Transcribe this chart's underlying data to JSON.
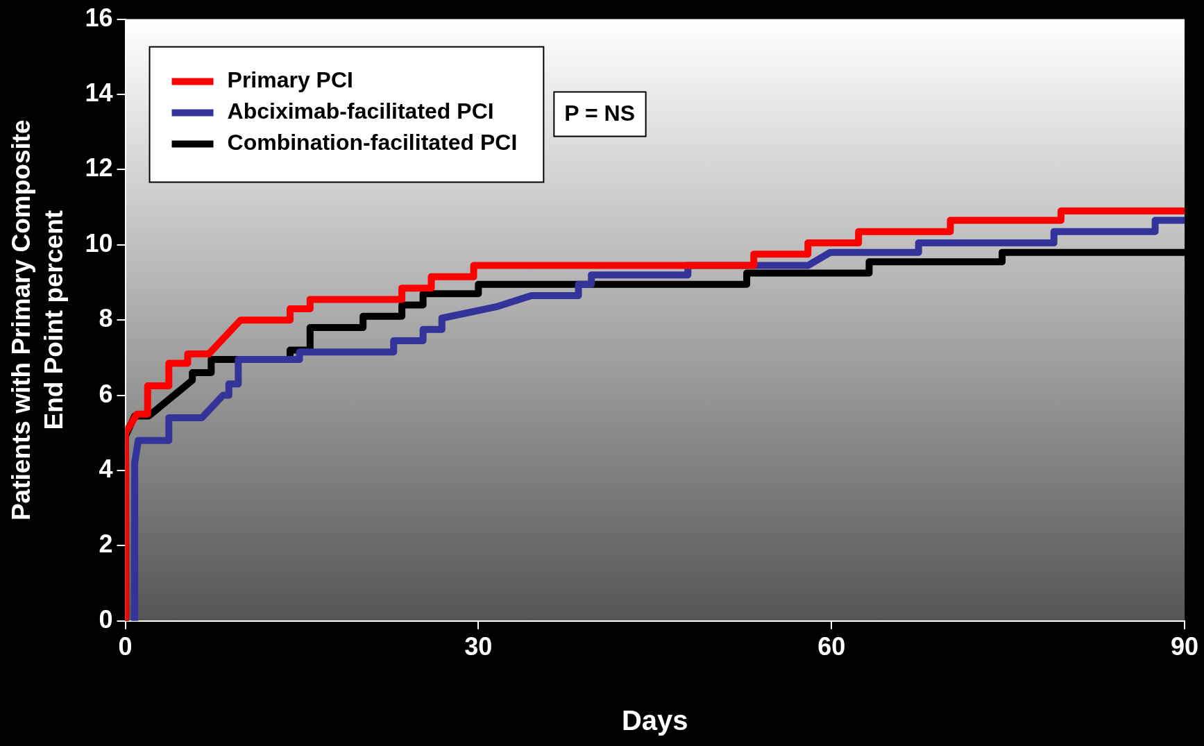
{
  "chart_data": {
    "type": "line",
    "xlabel": "Days",
    "ylabel": "Patients with Primary Composite\nEnd Point percent",
    "xlim": [
      0,
      90
    ],
    "xticks": [
      0,
      30,
      60,
      90
    ],
    "ylim": [
      0,
      16
    ],
    "yticks": [
      0,
      2,
      4,
      6,
      8,
      10,
      12,
      14,
      16
    ],
    "grid": false,
    "legend": "top left",
    "marker": "none",
    "line_style": "solid",
    "annotations": [
      "P = NS"
    ],
    "series": [
      {
        "name": "Primary PCI",
        "color": "#ff0000",
        "x": [
          0,
          0,
          1,
          1.9,
          1.9,
          3.7,
          3.7,
          5.3,
          5.3,
          7.1,
          9.8,
          14,
          14,
          15.7,
          15.7,
          23.5,
          23.5,
          26,
          26,
          29.6,
          29.6,
          53.4,
          53.4,
          58,
          58,
          62.3,
          62.3,
          70.1,
          70.1,
          79.5,
          79.5,
          90
        ],
        "values": [
          0,
          5,
          5.5,
          5.5,
          6.25,
          6.25,
          6.85,
          6.85,
          7.1,
          7.1,
          8,
          8,
          8.3,
          8.3,
          8.55,
          8.55,
          8.85,
          8.85,
          9.15,
          9.15,
          9.45,
          9.45,
          9.75,
          9.75,
          10.05,
          10.05,
          10.35,
          10.35,
          10.65,
          10.65,
          10.9,
          10.9
        ]
      },
      {
        "name": "Abciximab-facilitated PCI",
        "color": "#333399",
        "x": [
          0.8,
          0.8,
          1.1,
          3.7,
          3.7,
          6.5,
          8.3,
          8.8,
          8.8,
          9.6,
          9.6,
          14.8,
          14.8,
          22.8,
          22.8,
          25.3,
          25.3,
          26.9,
          26.9,
          31.5,
          34.5,
          38.5,
          38.5,
          39.6,
          39.6,
          47.8,
          47.8,
          58,
          59.9,
          67.4,
          67.4,
          78.9,
          78.9,
          87.5,
          87.5,
          90
        ],
        "values": [
          0,
          4.2,
          4.8,
          4.8,
          5.4,
          5.4,
          6,
          6,
          6.3,
          6.3,
          6.95,
          6.95,
          7.15,
          7.15,
          7.45,
          7.45,
          7.75,
          7.75,
          8.05,
          8.35,
          8.65,
          8.65,
          8.95,
          8.95,
          9.2,
          9.2,
          9.45,
          9.45,
          9.8,
          9.8,
          10.05,
          10.05,
          10.35,
          10.35,
          10.65,
          10.65
        ]
      },
      {
        "name": "Combination-facilitated PCI",
        "color": "#000000",
        "x": [
          0,
          0,
          0.8,
          2,
          5.7,
          5.7,
          7.3,
          7.3,
          14,
          14,
          15.7,
          15.7,
          20.2,
          20.2,
          23.5,
          23.5,
          25.3,
          25.3,
          30,
          30,
          52.8,
          52.8,
          63.2,
          63.2,
          74.5,
          74.5,
          90
        ],
        "values": [
          0,
          4.9,
          5.45,
          5.45,
          6.4,
          6.6,
          6.6,
          6.95,
          6.95,
          7.2,
          7.2,
          7.8,
          7.8,
          8.1,
          8.1,
          8.4,
          8.4,
          8.7,
          8.7,
          8.95,
          8.95,
          9.25,
          9.25,
          9.55,
          9.55,
          9.8,
          9.8
        ]
      }
    ]
  }
}
